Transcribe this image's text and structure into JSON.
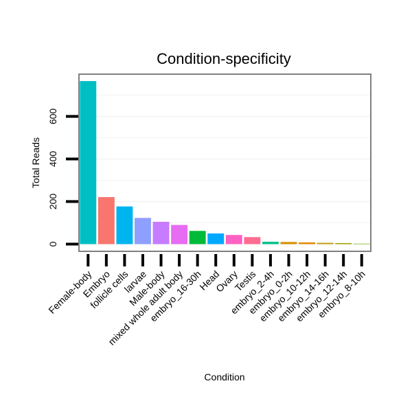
{
  "chart_data": {
    "type": "bar",
    "title": "Condition-specificity",
    "xlabel": "Condition",
    "ylabel": "Total Reads",
    "categories": [
      "Female-body",
      "Embryo",
      "follicle cells",
      "larvae",
      "Male-body",
      "mixed whole adult body",
      "embryo_16-30h",
      "Head",
      "Ovary",
      "Testis",
      "embryo_2-4h",
      "embryo_0-2h",
      "embryo_10-12h",
      "embryo_14-16h",
      "embryo_12-14h",
      "embryo_8-10h"
    ],
    "values": [
      766,
      221,
      177,
      123,
      105,
      90,
      62,
      50,
      43,
      33,
      11,
      10,
      8,
      6,
      5,
      2
    ],
    "colors": [
      "#00BFC4",
      "#F8766D",
      "#00B4EF",
      "#8F9FFF",
      "#C77CFF",
      "#E76BF3",
      "#00BA38",
      "#00A9FF",
      "#FF61C3",
      "#FF6C91",
      "#00C08B",
      "#D89000",
      "#E38900",
      "#C49A00",
      "#A3A500",
      "#7CAE00"
    ],
    "yticks": [
      0,
      200,
      400,
      600
    ],
    "ylim": [
      -35,
      802
    ],
    "grid": true,
    "legend": "none"
  }
}
